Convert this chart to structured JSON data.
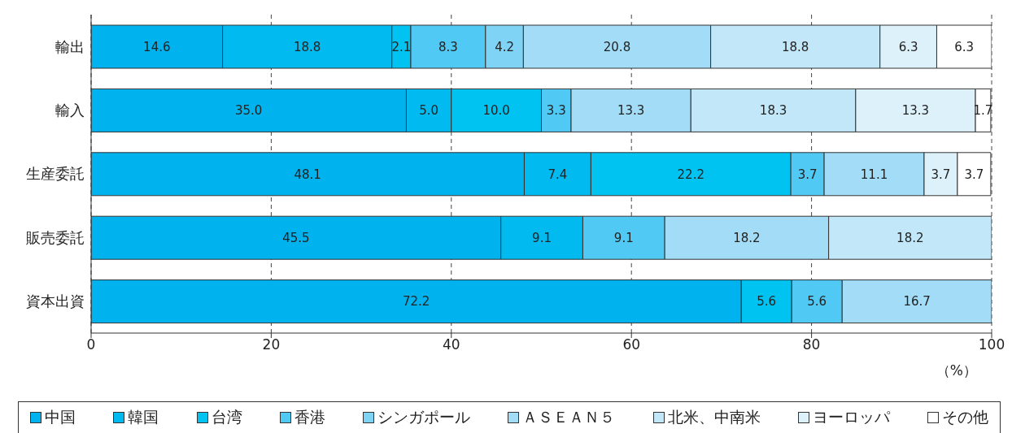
{
  "chart_data": {
    "type": "bar",
    "orientation": "horizontal",
    "stacked": true,
    "categories": [
      "輸出",
      "輸入",
      "生産委託",
      "販売委託",
      "資本出資"
    ],
    "xlabel": "（%）",
    "xlim": [
      0,
      100
    ],
    "xticks": [
      0,
      20,
      40,
      60,
      80,
      100
    ],
    "grid": "x",
    "legend": "bottom",
    "series": [
      {
        "name": "中国",
        "color": "#00b2ee",
        "values": [
          14.6,
          35.0,
          48.1,
          45.5,
          72.2
        ],
        "value_labels": [
          "14.6",
          "35.0",
          "48.1",
          "45.5",
          "72.2"
        ]
      },
      {
        "name": "韓国",
        "color": "#00baf0",
        "values": [
          18.8,
          5.0,
          7.4,
          9.1,
          null
        ],
        "value_labels": [
          "18.8",
          "5.0",
          "7.4",
          "9.1",
          null
        ]
      },
      {
        "name": "台湾",
        "color": "#00c3f2",
        "values": [
          2.1,
          10.0,
          22.2,
          null,
          5.6
        ],
        "value_labels": [
          "2.1",
          "10.0",
          "22.2",
          null,
          "5.6"
        ]
      },
      {
        "name": "香港",
        "color": "#50c9f4",
        "values": [
          8.3,
          3.3,
          3.7,
          9.1,
          5.6
        ],
        "value_labels": [
          "8.3",
          "3.3",
          "3.7",
          "9.1",
          "5.6"
        ]
      },
      {
        "name": "シンガポール",
        "color": "#7fd3f5",
        "values": [
          4.2,
          null,
          null,
          null,
          null
        ],
        "value_labels": [
          "4.2",
          null,
          null,
          null,
          null
        ]
      },
      {
        "name": "ＡＳＥＡＮ５",
        "color": "#a2dcf7",
        "values": [
          20.8,
          13.3,
          11.1,
          18.2,
          16.7
        ],
        "value_labels": [
          "20.8",
          "13.3",
          "11.1",
          "18.2",
          "16.7"
        ]
      },
      {
        "name": "北米、中南米",
        "color": "#c1e7f9",
        "values": [
          18.8,
          18.3,
          null,
          18.2,
          null
        ],
        "value_labels": [
          "18.8",
          "18.3",
          null,
          "18.2",
          null
        ]
      },
      {
        "name": "ヨーロッパ",
        "color": "#ddf1fb",
        "values": [
          6.3,
          13.3,
          3.7,
          null,
          null
        ],
        "value_labels": [
          "6.3",
          "13.3",
          "3.7",
          null,
          null
        ]
      },
      {
        "name": "その他",
        "color": "#ffffff",
        "values": [
          6.3,
          1.7,
          3.7,
          null,
          null
        ],
        "value_labels": [
          "6.3",
          "1.7",
          "3.7",
          null,
          null
        ]
      }
    ]
  }
}
